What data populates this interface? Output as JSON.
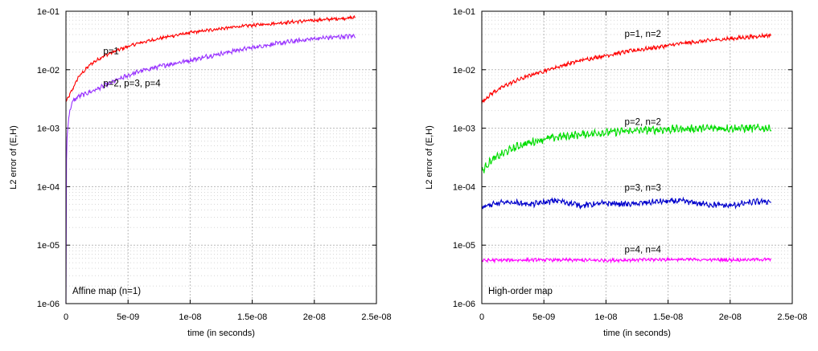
{
  "chart_data": [
    {
      "type": "line",
      "title": "",
      "xlabel": "time (in seconds)",
      "ylabel": "L2 error of (E,H)",
      "xlim": [
        0,
        2.5e-08
      ],
      "ylim": [
        1e-06,
        0.1
      ],
      "yscale": "log",
      "grid": true,
      "x_ticks": [
        0,
        5e-09,
        1e-08,
        1.5e-08,
        2e-08,
        2.5e-08
      ],
      "x_tick_labels": [
        "0",
        "5e-09",
        "1e-08",
        "1.5e-08",
        "2e-08",
        "2.5e-08"
      ],
      "y_ticks": [
        1e-06,
        1e-05,
        0.0001,
        0.001,
        0.01,
        0.1
      ],
      "y_tick_labels": [
        "1e-06",
        "1e-05",
        "1e-04",
        "1e-03",
        "1e-02",
        "1e-01"
      ],
      "inset_label": "Affine map (n=1)",
      "annotations": [
        {
          "text": "p=1",
          "x": 3e-09,
          "y": 0.0185
        },
        {
          "text": "p=2, p=3, p=4",
          "x": 3e-09,
          "y": 0.0052
        }
      ],
      "series": [
        {
          "color": "#ff0000",
          "noise": 0.05,
          "x": [
            0,
            5e-10,
            1e-09,
            2e-09,
            3e-09,
            4e-09,
            5e-09,
            6e-09,
            8e-09,
            1e-08,
            1.2e-08,
            1.4e-08,
            1.6e-08,
            1.8e-08,
            2e-08,
            2.2e-08,
            2.33e-08
          ],
          "y": [
            0.0028,
            0.0045,
            0.0075,
            0.0125,
            0.017,
            0.021,
            0.025,
            0.029,
            0.036,
            0.043,
            0.049,
            0.055,
            0.06,
            0.065,
            0.07,
            0.075,
            0.078
          ]
        },
        {
          "color": "#9933ff",
          "noise": 0.07,
          "x": [
            0,
            5e-11,
            2e-10,
            5e-10,
            1e-09,
            2e-09,
            3e-09,
            4e-09,
            5e-09,
            6e-09,
            8e-09,
            1e-08,
            1.2e-08,
            1.4e-08,
            1.6e-08,
            1.8e-08,
            2e-08,
            2.2e-08,
            2.33e-08
          ],
          "y": [
            1e-06,
            0.0005,
            0.0015,
            0.0028,
            0.0035,
            0.0042,
            0.0052,
            0.0065,
            0.008,
            0.0095,
            0.012,
            0.0145,
            0.018,
            0.022,
            0.026,
            0.03,
            0.034,
            0.0365,
            0.038
          ]
        }
      ]
    },
    {
      "type": "line",
      "title": "",
      "xlabel": "time (in seconds)",
      "ylabel": "L2 error of (E,H)",
      "xlim": [
        0,
        2.5e-08
      ],
      "ylim": [
        1e-06,
        0.1
      ],
      "yscale": "log",
      "grid": true,
      "x_ticks": [
        0,
        5e-09,
        1e-08,
        1.5e-08,
        2e-08,
        2.5e-08
      ],
      "x_tick_labels": [
        "0",
        "5e-09",
        "1e-08",
        "1.5e-08",
        "2e-08",
        "2.5e-08"
      ],
      "y_ticks": [
        1e-06,
        1e-05,
        0.0001,
        0.001,
        0.01,
        0.1
      ],
      "y_tick_labels": [
        "1e-06",
        "1e-05",
        "1e-04",
        "1e-03",
        "1e-02",
        "1e-01"
      ],
      "inset_label": "High-order map",
      "annotations": [
        {
          "text": "p=1, n=2",
          "x": 1.15e-08,
          "y": 0.0365
        },
        {
          "text": "p=2, n=2",
          "x": 1.15e-08,
          "y": 0.00113
        },
        {
          "text": "p=3, n=3",
          "x": 1.15e-08,
          "y": 8.45e-05
        },
        {
          "text": "p=4, n=4",
          "x": 1.15e-08,
          "y": 7.4e-06
        }
      ],
      "series": [
        {
          "color": "#ff0000",
          "noise": 0.06,
          "x": [
            0,
            5e-10,
            1e-09,
            2e-09,
            3e-09,
            4e-09,
            5e-09,
            6e-09,
            8e-09,
            1e-08,
            1.2e-08,
            1.4e-08,
            1.6e-08,
            1.8e-08,
            2e-08,
            2.2e-08,
            2.33e-08
          ],
          "y": [
            0.0027,
            0.0035,
            0.0042,
            0.0055,
            0.0068,
            0.0082,
            0.0095,
            0.011,
            0.0145,
            0.0175,
            0.021,
            0.024,
            0.028,
            0.031,
            0.034,
            0.037,
            0.039
          ]
        },
        {
          "color": "#00dd00",
          "noise": 0.12,
          "x": [
            0,
            5e-10,
            1e-09,
            2e-09,
            3e-09,
            4e-09,
            5e-09,
            6e-09,
            8e-09,
            1e-08,
            1.2e-08,
            1.4e-08,
            1.6e-08,
            1.8e-08,
            2e-08,
            2.2e-08,
            2.33e-08
          ],
          "y": [
            0.00018,
            0.00025,
            0.0003,
            0.0004,
            0.0005,
            0.00058,
            0.00065,
            0.0007,
            0.00078,
            0.00085,
            0.0009,
            0.00094,
            0.00097,
            0.00099,
            0.001,
            0.001,
            0.001
          ]
        },
        {
          "color": "#0000cc",
          "noise": 0.09,
          "x": [
            0,
            2e-09,
            4e-09,
            6e-09,
            8e-09,
            1e-08,
            1.2e-08,
            1.4e-08,
            1.6e-08,
            1.8e-08,
            2e-08,
            2.2e-08,
            2.33e-08
          ],
          "y": [
            4.5e-05,
            5.5e-05,
            5e-05,
            5.8e-05,
            4.8e-05,
            5.2e-05,
            5e-05,
            5.5e-05,
            5.7e-05,
            5e-05,
            4.7e-05,
            5.5e-05,
            5.6e-05
          ]
        },
        {
          "color": "#ff00ff",
          "noise": 0.05,
          "x": [
            0,
            5e-09,
            1e-08,
            1.5e-08,
            2e-08,
            2.33e-08
          ],
          "y": [
            5.5e-06,
            5.6e-06,
            5.5e-06,
            5.7e-06,
            5.6e-06,
            5.7e-06
          ]
        }
      ]
    }
  ]
}
